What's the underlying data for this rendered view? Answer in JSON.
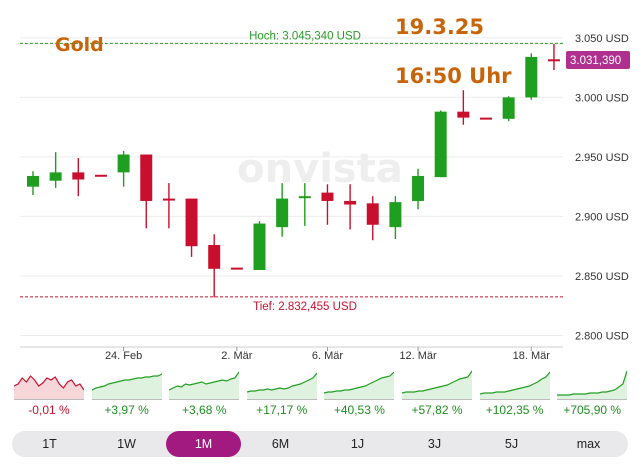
{
  "overlay": {
    "title": "Gold",
    "date": "19.3.25",
    "time": "16:50 Uhr",
    "title_color": "#c8650a"
  },
  "chart_data": {
    "type": "candlestick",
    "watermark": "onvista",
    "y_ticks": [
      2800,
      2850,
      2900,
      2950,
      3000,
      3050
    ],
    "y_tick_labels": [
      "2.800 USD",
      "2.850 USD",
      "2.900 USD",
      "2.950 USD",
      "3.000 USD",
      "3.050 USD"
    ],
    "ylim": [
      2792,
      3065
    ],
    "x_ticks": [
      {
        "label": "24. Feb",
        "index": 4
      },
      {
        "label": "2. Mär",
        "index": 9
      },
      {
        "label": "6. Mär",
        "index": 13
      },
      {
        "label": "12. Mär",
        "index": 17
      },
      {
        "label": "18. Mär",
        "index": 22
      }
    ],
    "high": {
      "label": "Hoch: 3.045,340 USD",
      "value": 3045.34
    },
    "low": {
      "label": "Tief: 2.832,455 USD",
      "value": 2832.455
    },
    "last": {
      "label": "3.031,390",
      "value": 3031.39
    },
    "colors": {
      "up": "#1f9e1f",
      "down": "#c8102e",
      "neutral": "#b0005e",
      "last_badge": "#b0308f"
    },
    "candles": [
      {
        "o": 2925,
        "h": 2938,
        "l": 2918,
        "c": 2934
      },
      {
        "o": 2930,
        "h": 2954,
        "l": 2924,
        "c": 2937
      },
      {
        "o": 2937,
        "h": 2949,
        "l": 2917,
        "c": 2931
      },
      {
        "o": 2935,
        "h": 2935,
        "l": 2935,
        "c": 2934
      },
      {
        "o": 2937,
        "h": 2955,
        "l": 2925,
        "c": 2952
      },
      {
        "o": 2952,
        "h": 2952,
        "l": 2890,
        "c": 2913
      },
      {
        "o": 2915,
        "h": 2928,
        "l": 2890,
        "c": 2914
      },
      {
        "o": 2915,
        "h": 2915,
        "l": 2866,
        "c": 2875
      },
      {
        "o": 2876,
        "h": 2885,
        "l": 2832,
        "c": 2856
      },
      {
        "o": 2857,
        "h": 2857,
        "l": 2857,
        "c": 2856
      },
      {
        "o": 2855,
        "h": 2896,
        "l": 2855,
        "c": 2894
      },
      {
        "o": 2891,
        "h": 2928,
        "l": 2883,
        "c": 2915
      },
      {
        "o": 2916,
        "h": 2928,
        "l": 2892,
        "c": 2917
      },
      {
        "o": 2920,
        "h": 2927,
        "l": 2893,
        "c": 2913
      },
      {
        "o": 2913,
        "h": 2927,
        "l": 2889,
        "c": 2910
      },
      {
        "o": 2911,
        "h": 2917,
        "l": 2880,
        "c": 2893
      },
      {
        "o": 2891,
        "h": 2917,
        "l": 2881,
        "c": 2912
      },
      {
        "o": 2913,
        "h": 2940,
        "l": 2906,
        "c": 2934
      },
      {
        "o": 2933,
        "h": 2989,
        "l": 2933,
        "c": 2988
      },
      {
        "o": 2988,
        "h": 3006,
        "l": 2977,
        "c": 2983
      },
      {
        "o": 2983,
        "h": 2983,
        "l": 2983,
        "c": 2983
      },
      {
        "o": 2982,
        "h": 3001,
        "l": 2980,
        "c": 3000
      },
      {
        "o": 3000,
        "h": 3037,
        "l": 2998,
        "c": 3034
      },
      {
        "o": 3032,
        "h": 3045,
        "l": 3023,
        "c": 3031
      }
    ]
  },
  "mini_charts": [
    {
      "change": "-0,01 %",
      "trend": "down"
    },
    {
      "change": "+3,97 %",
      "trend": "up"
    },
    {
      "change": "+3,68 %",
      "trend": "up"
    },
    {
      "change": "+17,17 %",
      "trend": "up"
    },
    {
      "change": "+40,53 %",
      "trend": "up"
    },
    {
      "change": "+57,82 %",
      "trend": "up"
    },
    {
      "change": "+102,35 %",
      "trend": "up"
    },
    {
      "change": "+705,90 %",
      "trend": "up"
    }
  ],
  "ranges": [
    {
      "label": "1T",
      "active": false
    },
    {
      "label": "1W",
      "active": false
    },
    {
      "label": "1M",
      "active": true
    },
    {
      "label": "6M",
      "active": false
    },
    {
      "label": "1J",
      "active": false
    },
    {
      "label": "3J",
      "active": false
    },
    {
      "label": "5J",
      "active": false
    },
    {
      "label": "max",
      "active": false
    }
  ]
}
